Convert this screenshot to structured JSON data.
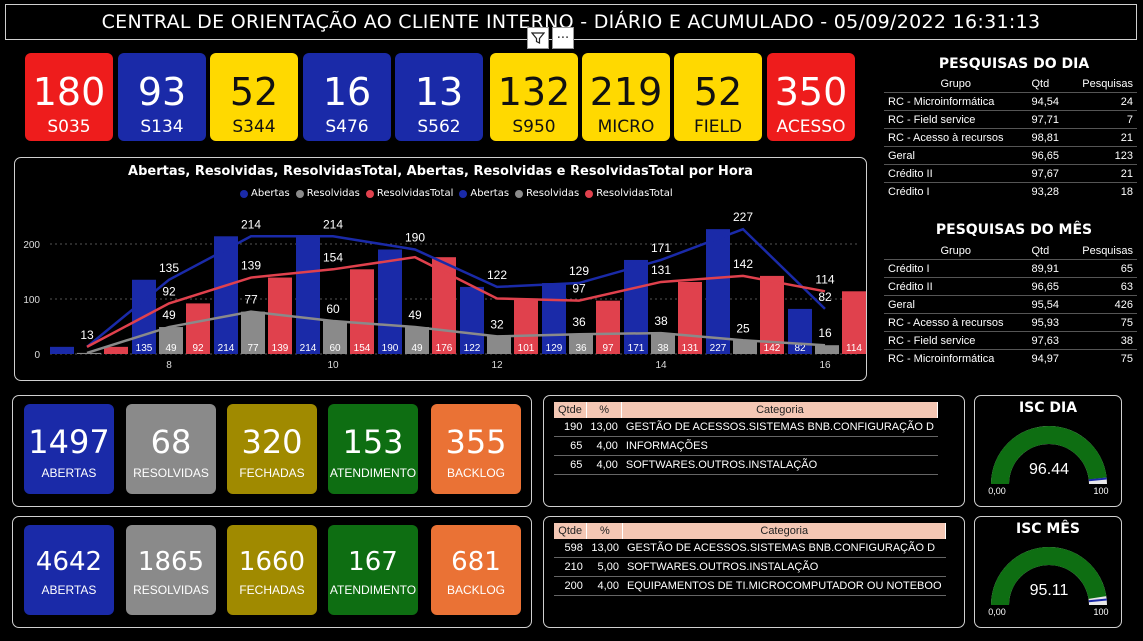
{
  "header": {
    "title": "CENTRAL DE ORIENTAÇÃO AO CLIENTE INTERNO - DIÁRIO E ACUMULADO - 05/09/2022 16:31:13",
    "filter_icon": "filter-icon",
    "more_icon": "more-options-icon",
    "more_glyph": "···"
  },
  "kpis": [
    {
      "value": "180",
      "label": "S035",
      "bg": "#ee1c1c",
      "fg": "#ffffff"
    },
    {
      "value": "93",
      "label": "S134",
      "bg": "#1a2aa8",
      "fg": "#ffffff"
    },
    {
      "value": "52",
      "label": "S344",
      "bg": "#ffd900",
      "fg": "#111111"
    },
    {
      "value": "16",
      "label": "S476",
      "bg": "#1a2aa8",
      "fg": "#ffffff"
    },
    {
      "value": "13",
      "label": "S562",
      "bg": "#1a2aa8",
      "fg": "#ffffff"
    },
    {
      "value": "132",
      "label": "S950",
      "bg": "#ffd900",
      "fg": "#111111"
    },
    {
      "value": "219",
      "label": "MICRO",
      "bg": "#ffd900",
      "fg": "#111111"
    },
    {
      "value": "52",
      "label": "FIELD",
      "bg": "#ffd900",
      "fg": "#111111"
    },
    {
      "value": "350",
      "label": "ACESSO",
      "bg": "#ee1c1c",
      "fg": "#ffffff"
    }
  ],
  "chart_data": {
    "type": "bar",
    "title": "Abertas, Resolvidas, ResolvidasTotal, Abertas, Resolvidas e ResolvidasTotal por Hora",
    "legend": [
      "Abertas",
      "Resolvidas",
      "ResolvidasTotal",
      "Abertas",
      "Resolvidas",
      "ResolvidasTotal"
    ],
    "colors": {
      "abertas": "#1a2aa8",
      "resolvidas": "#8a8a8a",
      "resolvidas_total": "#e0414d"
    },
    "x": [
      7,
      8,
      9,
      10,
      11,
      12,
      13,
      14,
      15,
      16
    ],
    "x_tick_labels": [
      "8",
      "10",
      "12",
      "14",
      "16"
    ],
    "x_tick_values": [
      8,
      10,
      12,
      14,
      16
    ],
    "y_ticks": [
      0,
      100,
      200
    ],
    "ylim": [
      0,
      240
    ],
    "series": [
      {
        "name": "Abertas",
        "kind": "bar",
        "values": [
          13,
          135,
          214,
          214,
          190,
          122,
          129,
          171,
          227,
          82
        ]
      },
      {
        "name": "Resolvidas",
        "kind": "bar",
        "values": [
          2,
          49,
          77,
          60,
          49,
          32,
          36,
          38,
          25,
          16
        ]
      },
      {
        "name": "ResolvidasTotal",
        "kind": "bar",
        "values": [
          13,
          92,
          139,
          154,
          176,
          101,
          97,
          131,
          142,
          114
        ]
      },
      {
        "name": "Abertas",
        "kind": "line",
        "values": [
          13,
          135,
          214,
          214,
          190,
          122,
          129,
          171,
          227,
          82
        ]
      },
      {
        "name": "Resolvidas",
        "kind": "line",
        "values": [
          2,
          49,
          77,
          60,
          49,
          32,
          36,
          38,
          25,
          16
        ]
      },
      {
        "name": "ResolvidasTotal",
        "kind": "line",
        "values": [
          13,
          92,
          139,
          154,
          176,
          101,
          97,
          131,
          142,
          114
        ]
      }
    ],
    "data_labels_top": [
      "13",
      "135",
      "214",
      "214",
      "190",
      "122",
      "129",
      "171",
      "227",
      "114"
    ],
    "data_labels_mid": [
      "",
      "92",
      "139",
      "154",
      "",
      "",
      "97",
      "131",
      "142",
      "82"
    ],
    "data_labels_low": [
      "",
      "49",
      "77",
      "60",
      "49",
      "32",
      "36",
      "38",
      "25",
      "16"
    ],
    "bar_labels": {
      "abertas": [
        "",
        "135",
        "214",
        "214",
        "190",
        "122",
        "129",
        "171",
        "227",
        "82"
      ],
      "resolvidas": [
        "",
        "49",
        "77",
        "60",
        "49",
        "",
        "36",
        "38",
        "",
        ""
      ],
      "resolvidas_total": [
        "",
        "92",
        "139",
        "154",
        "176",
        "101",
        "97",
        "131",
        "142",
        "114"
      ]
    }
  },
  "pesquisas_dia": {
    "title": "PESQUISAS DO DIA",
    "headers": [
      "Grupo",
      "Qtd",
      "Pesquisas"
    ],
    "rows": [
      [
        "RC - Microinformática",
        "94,54",
        "24"
      ],
      [
        "RC - Field service",
        "97,71",
        "7"
      ],
      [
        "RC - Acesso à recursos",
        "98,81",
        "21"
      ],
      [
        "Geral",
        "96,65",
        "123"
      ],
      [
        "Crédito II",
        "97,67",
        "21"
      ],
      [
        "Crédito I",
        "93,28",
        "18"
      ]
    ]
  },
  "pesquisas_mes": {
    "title": "PESQUISAS DO MÊS",
    "headers": [
      "Grupo",
      "Qtd",
      "Pesquisas"
    ],
    "rows": [
      [
        "Crédito I",
        "89,91",
        "65"
      ],
      [
        "Crédito II",
        "96,65",
        "63"
      ],
      [
        "Geral",
        "95,54",
        "426"
      ],
      [
        "RC - Acesso à recursos",
        "95,93",
        "75"
      ],
      [
        "RC - Field service",
        "97,63",
        "38"
      ],
      [
        "RC - Microinformática",
        "94,97",
        "75"
      ]
    ]
  },
  "daily_summary": [
    {
      "value": "1497",
      "label": "ABERTAS",
      "bg": "#1a2aa8",
      "fg": "#ffffff"
    },
    {
      "value": "68",
      "label": "RESOLVIDAS",
      "bg": "#8a8a8a",
      "fg": "#ffffff"
    },
    {
      "value": "320",
      "label": "FECHADAS",
      "bg": "#a08a00",
      "fg": "#ffffff"
    },
    {
      "value": "153",
      "label": "ATENDIMENTO",
      "bg": "#0e6e12",
      "fg": "#ffffff"
    },
    {
      "value": "355",
      "label": "BACKLOG",
      "bg": "#ea7235",
      "fg": "#ffffff"
    }
  ],
  "monthly_summary": [
    {
      "value": "4642",
      "label": "ABERTAS",
      "bg": "#1a2aa8",
      "fg": "#ffffff"
    },
    {
      "value": "1865",
      "label": "RESOLVIDAS",
      "bg": "#8a8a8a",
      "fg": "#ffffff"
    },
    {
      "value": "1660",
      "label": "FECHADAS",
      "bg": "#a08a00",
      "fg": "#ffffff"
    },
    {
      "value": "167",
      "label": "ATENDIMENTO",
      "bg": "#0e6e12",
      "fg": "#ffffff"
    },
    {
      "value": "681",
      "label": "BACKLOG",
      "bg": "#ea7235",
      "fg": "#ffffff"
    }
  ],
  "cat_daily": {
    "headers": [
      "Qtde",
      "%",
      "Categoria"
    ],
    "rows": [
      [
        "190",
        "13,00",
        "GESTÃO DE ACESSOS.SISTEMAS BNB.CONFIGURAÇÃO D"
      ],
      [
        "65",
        "4,00",
        "INFORMAÇÕES"
      ],
      [
        "65",
        "4,00",
        "SOFTWARES.OUTROS.INSTALAÇÃO"
      ]
    ]
  },
  "cat_monthly": {
    "headers": [
      "Qtde",
      "%",
      "Categoria"
    ],
    "rows": [
      [
        "598",
        "13,00",
        "GESTÃO DE ACESSOS.SISTEMAS BNB.CONFIGURAÇÃO D"
      ],
      [
        "210",
        "5,00",
        "SOFTWARES.OUTROS.INSTALAÇÃO"
      ],
      [
        "200",
        "4,00",
        "EQUIPAMENTOS DE TI.MICROCOMPUTADOR OU NOTEBOO"
      ]
    ]
  },
  "isc_dia": {
    "title": "ISC DIA",
    "value": 96.44,
    "value_text": "96.44",
    "min": "0,00",
    "max": "100",
    "color": "#0e6e12"
  },
  "isc_mes": {
    "title": "ISC MÊS",
    "value": 95.11,
    "value_text": "95.11",
    "min": "0,00",
    "max": "100",
    "color": "#0e6e12"
  }
}
